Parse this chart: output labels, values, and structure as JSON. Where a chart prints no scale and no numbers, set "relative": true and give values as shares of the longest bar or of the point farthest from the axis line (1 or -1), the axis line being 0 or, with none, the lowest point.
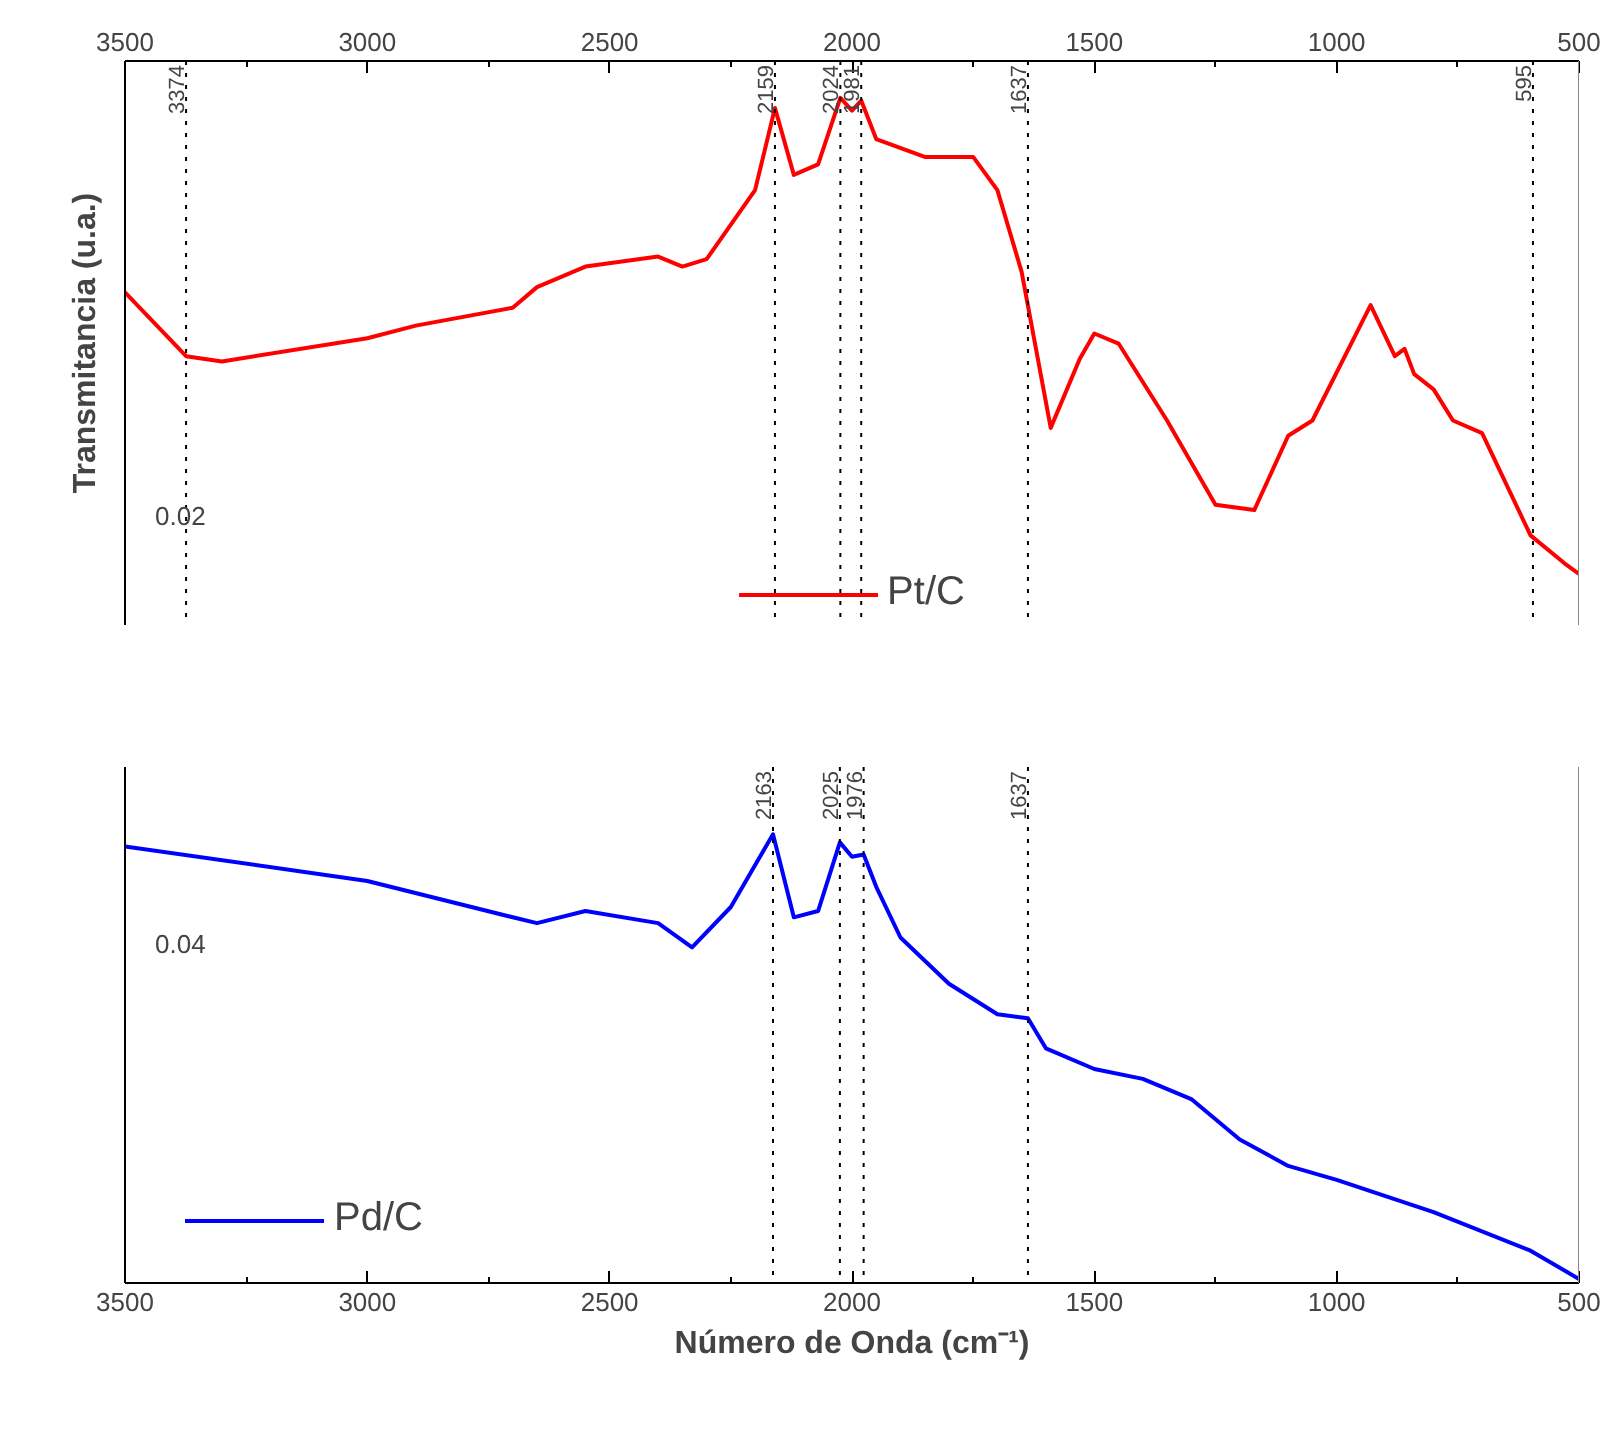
{
  "chart_data": [
    {
      "type": "line",
      "ylabel": "Transmitancia (u.a.)",
      "relative": true,
      "xlim": [
        3500,
        500
      ],
      "xticks": [
        3500,
        3000,
        2500,
        2000,
        1500,
        1000,
        500
      ],
      "tick_labels": "x",
      "legend": "bottom",
      "grid": false,
      "x": [
        3500,
        3374,
        3300,
        3000,
        2900,
        2700,
        2650,
        2550,
        2400,
        2350,
        2300,
        2200,
        2159,
        2120,
        2070,
        2024,
        2000,
        1981,
        1950,
        1850,
        1750,
        1700,
        1650,
        1590,
        1530,
        1500,
        1450,
        1350,
        1250,
        1170,
        1100,
        1050,
        930,
        880,
        860,
        840,
        800,
        760,
        700,
        600,
        530,
        500
      ],
      "series": [
        {
          "name": "Pt/C",
          "color": "#ff0000",
          "values": [
            0.631,
            0.51,
            0.5,
            0.544,
            0.568,
            0.602,
            0.641,
            0.68,
            0.699,
            0.68,
            0.694,
            0.825,
            0.981,
            0.854,
            0.874,
            1.0,
            0.976,
            0.995,
            0.922,
            0.888,
            0.888,
            0.825,
            0.67,
            0.374,
            0.505,
            0.553,
            0.534,
            0.388,
            0.228,
            0.218,
            0.359,
            0.388,
            0.607,
            0.51,
            0.524,
            0.476,
            0.447,
            0.388,
            0.364,
            0.17,
            0.117,
            0.097
          ]
        }
      ],
      "ref_lines": [
        {
          "axis": "x",
          "value": 3374,
          "label": "3374",
          "line_style": "dotted"
        },
        {
          "axis": "x",
          "value": 2159,
          "label": "2159",
          "line_style": "dotted"
        },
        {
          "axis": "x",
          "value": 2024,
          "label": "2024",
          "line_style": "dotted"
        },
        {
          "axis": "x",
          "value": 1981,
          "label": "1981",
          "line_style": "dotted"
        },
        {
          "axis": "x",
          "value": 1637,
          "label": "1637",
          "line_style": "dotted"
        },
        {
          "axis": "x",
          "value": 595,
          "label": "595",
          "line_style": "dotted"
        }
      ],
      "annotations": [
        "0.02"
      ]
    },
    {
      "type": "line",
      "xlabel": "Número de Onda (cm⁻¹)",
      "relative": true,
      "xlim": [
        3500,
        500
      ],
      "xticks": [
        3500,
        3000,
        2500,
        2000,
        1500,
        1000,
        500
      ],
      "tick_labels": "x",
      "legend": "bottom left",
      "grid": false,
      "x": [
        3500,
        3000,
        2700,
        2650,
        2550,
        2400,
        2330,
        2250,
        2163,
        2120,
        2070,
        2025,
        2000,
        1976,
        1950,
        1900,
        1800,
        1700,
        1637,
        1600,
        1500,
        1400,
        1300,
        1200,
        1100,
        1000,
        800,
        600,
        500
      ],
      "series": [
        {
          "name": "Pd/C",
          "color": "#0000ff",
          "values": [
            0.973,
            0.896,
            0.815,
            0.802,
            0.829,
            0.802,
            0.748,
            0.838,
            1.0,
            0.815,
            0.829,
            0.982,
            0.95,
            0.955,
            0.883,
            0.77,
            0.667,
            0.599,
            0.59,
            0.523,
            0.477,
            0.455,
            0.41,
            0.32,
            0.261,
            0.23,
            0.158,
            0.072,
            0.009
          ]
        }
      ],
      "ref_lines": [
        {
          "axis": "x",
          "value": 2163,
          "label": "2163",
          "line_style": "dotted"
        },
        {
          "axis": "x",
          "value": 2025,
          "label": "2025",
          "line_style": "dotted"
        },
        {
          "axis": "x",
          "value": 1976,
          "label": "1976",
          "line_style": "dotted"
        },
        {
          "axis": "x",
          "value": 1637,
          "label": "1637",
          "line_style": "dotted"
        }
      ],
      "annotations": [
        "0.04"
      ]
    }
  ]
}
